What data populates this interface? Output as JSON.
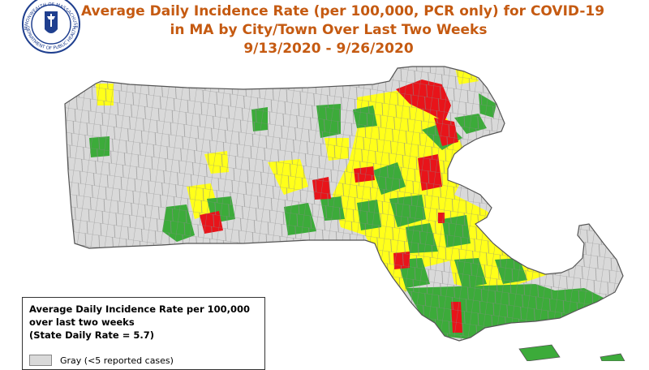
{
  "title": {
    "line1": "Average Daily Incidence Rate (per 100,000, PCR only) for COVID-19",
    "line2": "in MA by City/Town Over Last Two Weeks",
    "line3": "9/13/2020 - 9/26/2020"
  },
  "seal": {
    "text_top": "COMMONWEALTH OF MASSACHUSETTS",
    "text_bottom": "DEPARTMENT OF PUBLIC HEALTH"
  },
  "legend": {
    "title_line1": "Average Daily Incidence Rate per 100,000",
    "title_line2": "over last two weeks",
    "title_line3": "(State Daily Rate = 5.7)",
    "entries": [
      {
        "label": "Gray (<5 reported cases)",
        "color": "#d9d9d9"
      }
    ]
  },
  "colors": {
    "gray": "#d9d9d9",
    "green": "#3cab3a",
    "yellow": "#ffff1a",
    "red": "#e8141a",
    "title": "#c55a11"
  }
}
